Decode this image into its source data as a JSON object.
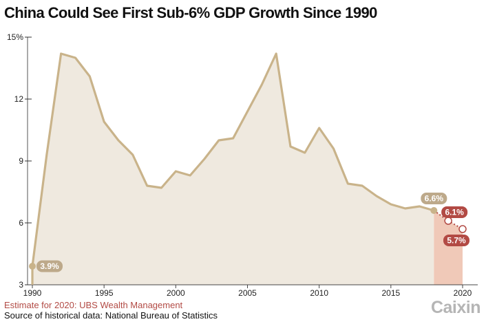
{
  "title": "China Could See First Sub-6% GDP Growth Since 1990",
  "notes": {
    "estimate": "Estimate for 2020: UBS Wealth Management",
    "source": "Source of historical data: National Bureau of Statistics"
  },
  "logo": "Caixin",
  "colors": {
    "line": "#c9b38a",
    "fill": "#efe9df",
    "estimate_fill": "#f0c9b8",
    "label_historical": "#bda98a",
    "label_estimate": "#b24a44",
    "estimate_text": "#b24a44"
  },
  "chart_data": {
    "type": "area",
    "title": "China Could See First Sub-6% GDP Growth Since 1990",
    "x": [
      1990,
      1991,
      1992,
      1993,
      1994,
      1995,
      1996,
      1997,
      1998,
      1999,
      2000,
      2001,
      2002,
      2003,
      2004,
      2005,
      2006,
      2007,
      2008,
      2009,
      2010,
      2011,
      2012,
      2013,
      2014,
      2015,
      2016,
      2017,
      2018
    ],
    "values": [
      3.9,
      9.3,
      14.2,
      14.0,
      13.1,
      10.9,
      10.0,
      9.3,
      7.8,
      7.7,
      8.5,
      8.3,
      9.1,
      10.0,
      10.1,
      11.4,
      12.7,
      14.2,
      9.7,
      9.4,
      10.6,
      9.6,
      7.9,
      7.8,
      7.3,
      6.9,
      6.7,
      6.8,
      6.6
    ],
    "estimate": {
      "x": [
        2018,
        2019,
        2020
      ],
      "values": [
        6.6,
        6.1,
        5.7
      ]
    },
    "labels": [
      {
        "x": 1990,
        "y": 3.9,
        "text": "3.9%",
        "kind": "historical"
      },
      {
        "x": 2018,
        "y": 6.6,
        "text": "6.6%",
        "kind": "historical"
      },
      {
        "x": 2019,
        "y": 6.1,
        "text": "6.1%",
        "kind": "estimate"
      },
      {
        "x": 2020,
        "y": 5.7,
        "text": "5.7%",
        "kind": "estimate"
      }
    ],
    "y_ticks": [
      3,
      6,
      9,
      12,
      15
    ],
    "y_tick_labels": [
      "3",
      "6",
      "9",
      "12",
      "15%"
    ],
    "x_ticks": [
      1990,
      1995,
      2000,
      2005,
      2010,
      2015,
      2020
    ],
    "x_tick_labels": [
      "1990",
      "1995",
      "2000",
      "2005",
      "2010",
      "2015",
      "2020"
    ],
    "xlim": [
      1990,
      2020
    ],
    "ylim": [
      3,
      15
    ],
    "xlabel": "",
    "ylabel": "",
    "grid": false
  }
}
